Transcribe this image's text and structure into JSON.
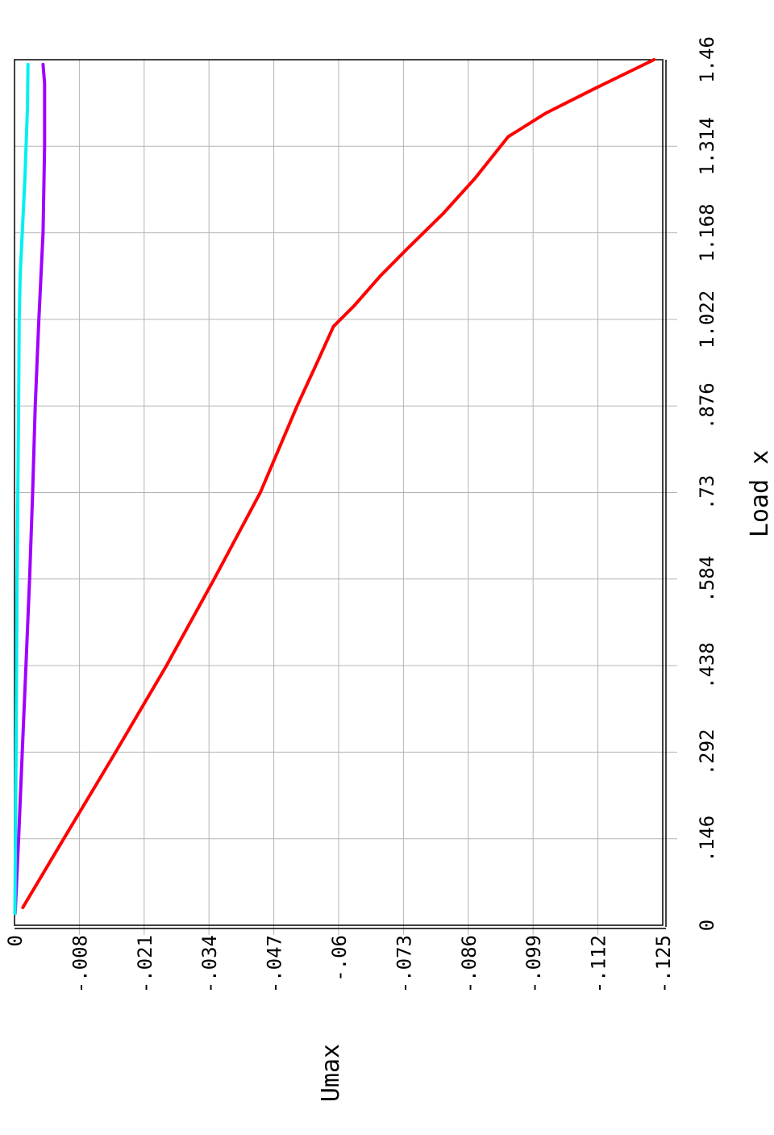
{
  "chart_data": {
    "type": "line",
    "orientation": "rotated-90",
    "title": "",
    "xlabel": "Load x",
    "ylabel": "Umax",
    "xlim": [
      0,
      1.46
    ],
    "ylim": [
      0,
      -0.125
    ],
    "x_ticks": [
      "0",
      ".146",
      ".292",
      ".438",
      ".584",
      ".73",
      ".876",
      "1.022",
      "1.168",
      "1.314",
      "1.46"
    ],
    "y_ticks": [
      "0",
      "-.008",
      "-.021",
      "-.034",
      "-.047",
      "-.06",
      "-.073",
      "-.086",
      "-.099",
      "-.112",
      "-.125"
    ],
    "grid": true,
    "series": [
      {
        "color": "#ff0000",
        "points": [
          [
            0.03,
            -0.0016
          ],
          [
            0.146,
            -0.0095
          ],
          [
            0.292,
            -0.0195
          ],
          [
            0.438,
            -0.0293
          ],
          [
            0.584,
            -0.0385
          ],
          [
            0.73,
            -0.0474
          ],
          [
            0.876,
            -0.0545
          ],
          [
            0.95,
            -0.0584
          ],
          [
            1.01,
            -0.0615
          ],
          [
            1.045,
            -0.0655
          ],
          [
            1.095,
            -0.0705
          ],
          [
            1.14,
            -0.0756
          ],
          [
            1.2,
            -0.0826
          ],
          [
            1.26,
            -0.0888
          ],
          [
            1.33,
            -0.0952
          ],
          [
            1.37,
            -0.1025
          ],
          [
            1.41,
            -0.1116
          ],
          [
            1.46,
            -0.1233
          ]
        ]
      },
      {
        "color": "#a000ff",
        "points": [
          [
            0.02,
            -0.00012
          ],
          [
            0.146,
            -0.0008
          ],
          [
            0.292,
            -0.0015
          ],
          [
            0.438,
            -0.0022
          ],
          [
            0.584,
            -0.0029
          ],
          [
            0.73,
            -0.0035
          ],
          [
            0.876,
            -0.004
          ],
          [
            1.022,
            -0.0047
          ],
          [
            1.168,
            -0.0055
          ],
          [
            1.314,
            -0.0058
          ],
          [
            1.42,
            -0.0058
          ],
          [
            1.452,
            -0.0055
          ]
        ]
      },
      {
        "color": "#00f0f0",
        "points": [
          [
            0.02,
            -8e-05
          ],
          [
            0.292,
            -0.0003
          ],
          [
            0.584,
            -0.0005
          ],
          [
            0.876,
            -0.0008
          ],
          [
            1.022,
            -0.0009
          ],
          [
            1.1,
            -0.0011
          ],
          [
            1.168,
            -0.0015
          ],
          [
            1.26,
            -0.002
          ],
          [
            1.38,
            -0.0025
          ],
          [
            1.452,
            -0.0026
          ]
        ]
      }
    ]
  }
}
